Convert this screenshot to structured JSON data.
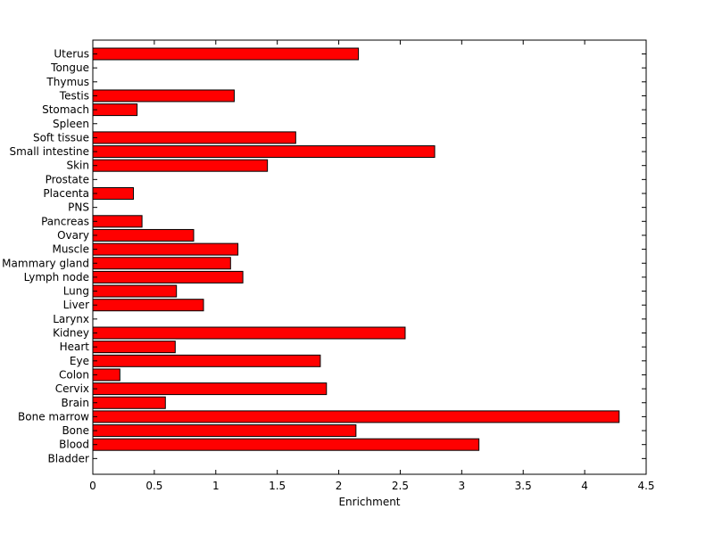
{
  "chart_data": {
    "type": "bar",
    "orientation": "horizontal",
    "title": "",
    "xlabel": "Enrichment",
    "ylabel": "",
    "xlim": [
      0,
      4.5
    ],
    "xticks": [
      "0",
      "0.5",
      "1",
      "1.5",
      "2",
      "2.5",
      "3",
      "3.5",
      "4",
      "4.5"
    ],
    "grid": false,
    "legend": "none",
    "bar_color": "#ff0000",
    "bar_edge_color": "#000000",
    "categories": [
      "Uterus",
      "Tongue",
      "Thymus",
      "Testis",
      "Stomach",
      "Spleen",
      "Soft tissue",
      "Small intestine",
      "Skin",
      "Prostate",
      "Placenta",
      "PNS",
      "Pancreas",
      "Ovary",
      "Muscle",
      "Mammary gland",
      "Lymph node",
      "Lung",
      "Liver",
      "Larynx",
      "Kidney",
      "Heart",
      "Eye",
      "Colon",
      "Cervix",
      "Brain",
      "Bone marrow",
      "Bone",
      "Blood",
      "Bladder"
    ],
    "values": [
      2.16,
      0,
      0,
      1.15,
      0.36,
      0,
      1.65,
      2.78,
      1.42,
      0,
      0.33,
      0,
      0.4,
      0.82,
      1.18,
      1.12,
      1.22,
      0.68,
      0.9,
      0,
      2.54,
      0.67,
      1.85,
      0.22,
      1.9,
      0.59,
      4.28,
      2.14,
      3.14,
      0
    ]
  }
}
